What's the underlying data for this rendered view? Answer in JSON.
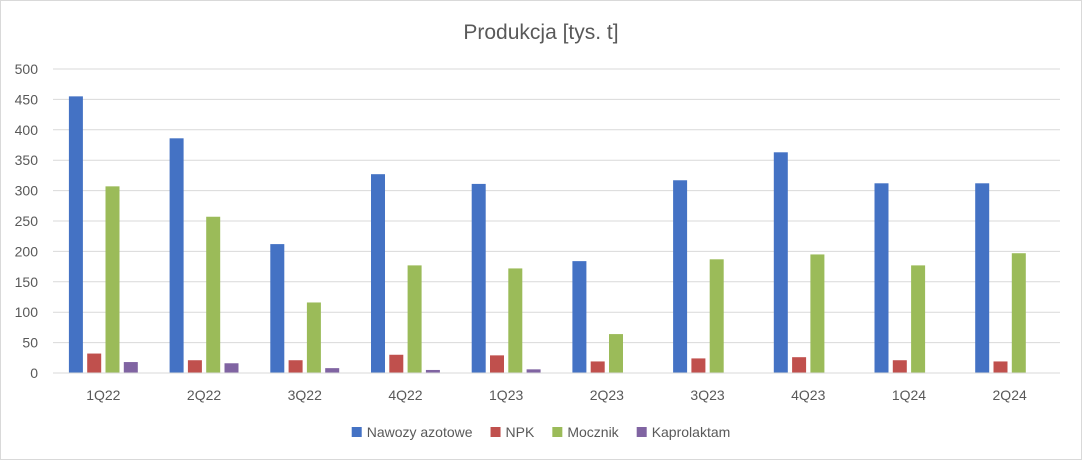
{
  "chart_data": {
    "type": "bar",
    "title": "Produkcja [tys. t]",
    "xlabel": "",
    "ylabel": "",
    "ylim": [
      0,
      500
    ],
    "y_ticks": [
      0,
      50,
      100,
      150,
      200,
      250,
      300,
      350,
      400,
      450,
      500
    ],
    "grid": true,
    "legend_position": "bottom",
    "categories": [
      "1Q22",
      "2Q22",
      "3Q22",
      "4Q22",
      "1Q23",
      "2Q23",
      "3Q23",
      "4Q23",
      "1Q24",
      "2Q24"
    ],
    "series": [
      {
        "name": "Nawozy azotowe",
        "color": "#4472c4",
        "values": [
          455,
          386,
          212,
          327,
          311,
          184,
          317,
          363,
          312,
          312
        ]
      },
      {
        "name": "NPK",
        "color": "#c0504d",
        "values": [
          32,
          21,
          21,
          30,
          29,
          19,
          24,
          26,
          21,
          19
        ]
      },
      {
        "name": "Mocznik",
        "color": "#9bbb59",
        "values": [
          307,
          257,
          116,
          177,
          172,
          64,
          187,
          195,
          177,
          197
        ]
      },
      {
        "name": "Kaprolaktam",
        "color": "#8064a2",
        "values": [
          18,
          16,
          8,
          5,
          6,
          0,
          0,
          0,
          0,
          0
        ]
      }
    ]
  }
}
